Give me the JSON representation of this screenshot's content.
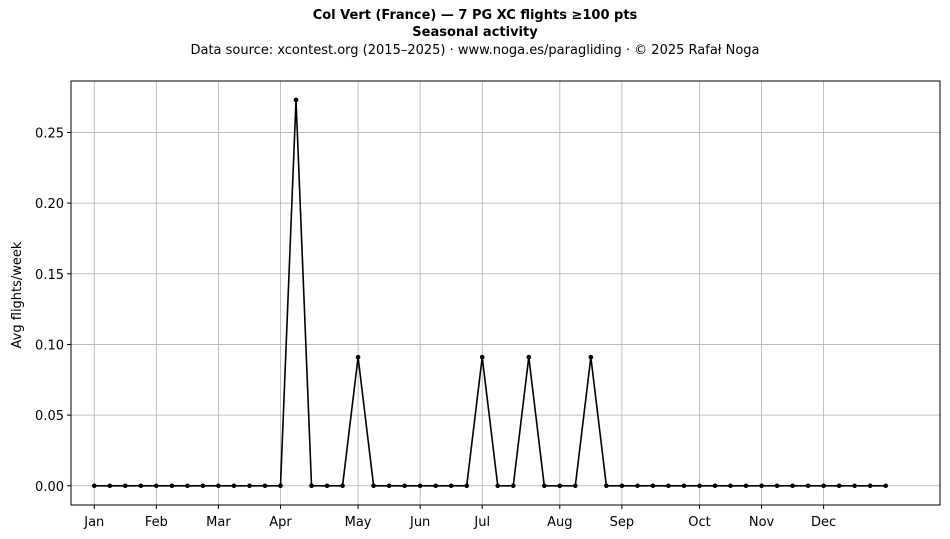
{
  "chart_data": {
    "type": "line",
    "title": "Col Vert (France)  —  7 PG XC flights ≥100 pts",
    "subtitle": "Seasonal activity",
    "source_line": "Data source: xcontest.org (2015–2025)  ·  www.noga.es/paragliding  ·  © 2025 Rafał Noga",
    "xlabel": "",
    "ylabel": "Avg flights/week",
    "x_unit": "week of year",
    "xlim": [
      -1.5,
      54.5
    ],
    "ylim": [
      -0.0136,
      0.2864
    ],
    "yticks": [
      0.0,
      0.05,
      0.1,
      0.15,
      0.2,
      0.25
    ],
    "ytick_labels": [
      "0.00",
      "0.05",
      "0.10",
      "0.15",
      "0.20",
      "0.25"
    ],
    "xticks": [
      {
        "week": 0,
        "label": "Jan"
      },
      {
        "week": 4,
        "label": "Feb"
      },
      {
        "week": 8,
        "label": "Mar"
      },
      {
        "week": 12,
        "label": "Apr"
      },
      {
        "week": 17,
        "label": "May"
      },
      {
        "week": 21,
        "label": "Jun"
      },
      {
        "week": 25,
        "label": "Jul"
      },
      {
        "week": 30,
        "label": "Aug"
      },
      {
        "week": 34,
        "label": "Sep"
      },
      {
        "week": 39,
        "label": "Oct"
      },
      {
        "week": 43,
        "label": "Nov"
      },
      {
        "week": 47,
        "label": "Dec"
      }
    ],
    "grid": true,
    "series": [
      {
        "color": "#000000",
        "marker": "circle",
        "x": [
          0,
          1,
          2,
          3,
          4,
          5,
          6,
          7,
          8,
          9,
          10,
          11,
          12,
          13,
          14,
          15,
          16,
          17,
          18,
          19,
          20,
          21,
          22,
          23,
          24,
          25,
          26,
          27,
          28,
          29,
          30,
          31,
          32,
          33,
          34,
          35,
          36,
          37,
          38,
          39,
          40,
          41,
          42,
          43,
          44,
          45,
          46,
          47,
          48,
          49,
          50,
          51
        ],
        "y": [
          0,
          0,
          0,
          0,
          0,
          0,
          0,
          0,
          0,
          0,
          0,
          0,
          0,
          0.273,
          0,
          0,
          0,
          0.091,
          0,
          0,
          0,
          0,
          0,
          0,
          0,
          0.091,
          0,
          0,
          0.091,
          0,
          0,
          0,
          0.091,
          0,
          0,
          0,
          0,
          0,
          0,
          0,
          0,
          0,
          0,
          0,
          0,
          0,
          0,
          0,
          0,
          0,
          0,
          0
        ]
      }
    ]
  }
}
